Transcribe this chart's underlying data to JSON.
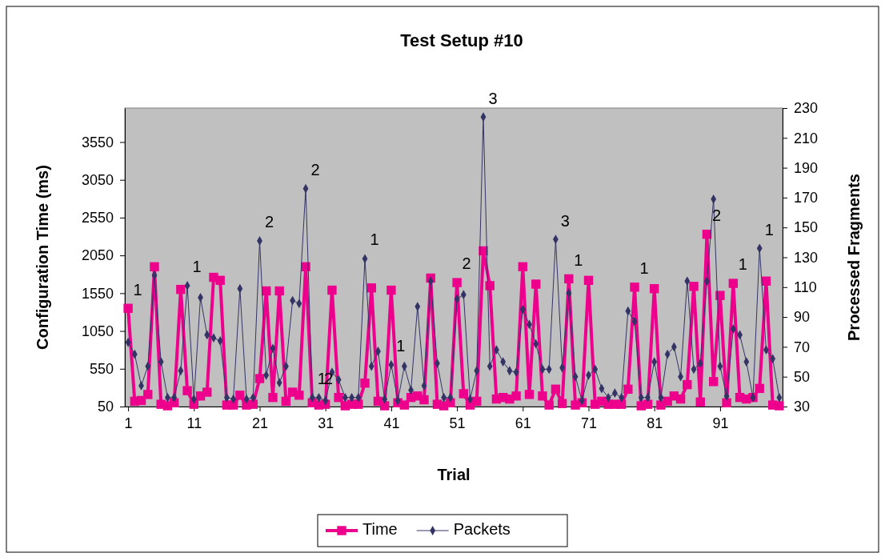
{
  "chart_data": {
    "type": "line",
    "title": "Test Setup #10",
    "xlabel": "Trial",
    "ylabel": "Configuration Time (ms)",
    "y2label": "Processed Fragments",
    "x": [
      1,
      2,
      3,
      4,
      5,
      6,
      7,
      8,
      9,
      10,
      11,
      12,
      13,
      14,
      15,
      16,
      17,
      18,
      19,
      20,
      21,
      22,
      23,
      24,
      25,
      26,
      27,
      28,
      29,
      30,
      31,
      32,
      33,
      34,
      35,
      36,
      37,
      38,
      39,
      40,
      41,
      42,
      43,
      44,
      45,
      46,
      47,
      48,
      49,
      50,
      51,
      52,
      53,
      54,
      55,
      56,
      57,
      58,
      59,
      60,
      61,
      62,
      63,
      64,
      65,
      66,
      67,
      68,
      69,
      70,
      71,
      72,
      73,
      74,
      75,
      76,
      77,
      78,
      79,
      80,
      81,
      82,
      83,
      84,
      85,
      86,
      87,
      88,
      89,
      90,
      91,
      92,
      93,
      94,
      95,
      96,
      97,
      98,
      99,
      100
    ],
    "xlim": [
      0.5,
      100.5
    ],
    "xticks": [
      1,
      11,
      21,
      31,
      41,
      51,
      61,
      71,
      81,
      91
    ],
    "ylim": [
      50,
      4000
    ],
    "yticks": [
      50,
      550,
      1050,
      1550,
      2050,
      2550,
      3050,
      3550
    ],
    "y2lim": [
      30,
      230
    ],
    "y2ticks": [
      30,
      50,
      70,
      90,
      110,
      130,
      150,
      170,
      190,
      210,
      230
    ],
    "grid": false,
    "legend": "bottom",
    "series": [
      {
        "name": "Time",
        "color": "#ec008c",
        "marker": "square",
        "values": [
          1350,
          120,
          130,
          210,
          1900,
          80,
          60,
          100,
          1600,
          260,
          80,
          190,
          240,
          1760,
          1720,
          70,
          70,
          200,
          70,
          80,
          420,
          1580,
          170,
          1580,
          120,
          240,
          200,
          1900,
          100,
          70,
          80,
          1590,
          170,
          60,
          80,
          80,
          360,
          1620,
          120,
          60,
          1590,
          100,
          70,
          170,
          190,
          140,
          1750,
          80,
          60,
          100,
          1690,
          220,
          70,
          120,
          2110,
          1650,
          150,
          170,
          150,
          190,
          1900,
          210,
          1670,
          190,
          70,
          280,
          90,
          1740,
          70,
          100,
          1720,
          80,
          120,
          80,
          80,
          80,
          280,
          1630,
          60,
          80,
          1610,
          70,
          120,
          190,
          150,
          340,
          1640,
          110,
          2330,
          380,
          1520,
          100,
          1680,
          170,
          150,
          170,
          290,
          1710,
          70,
          60
        ]
      },
      {
        "name": "Packets",
        "color": "#333366",
        "marker": "diamond",
        "axis": "y2",
        "values": [
          73,
          65,
          44,
          57,
          118,
          60,
          36,
          36,
          54,
          111,
          35,
          103,
          78,
          76,
          74,
          36,
          35,
          109,
          35,
          36,
          141,
          51,
          69,
          46,
          57,
          101,
          99,
          176,
          36,
          36,
          34,
          53,
          48,
          36,
          36,
          36,
          129,
          57,
          67,
          35,
          58,
          34,
          57,
          41,
          97,
          44,
          114,
          59,
          36,
          36,
          102,
          105,
          35,
          54,
          224,
          57,
          68,
          60,
          54,
          53,
          95,
          85,
          72,
          55,
          55,
          142,
          56,
          106,
          50,
          34,
          51,
          55,
          42,
          36,
          39,
          36,
          94,
          87,
          36,
          36,
          60,
          36,
          65,
          70,
          50,
          114,
          55,
          59,
          114,
          169,
          57,
          37,
          82,
          78,
          60,
          36,
          136,
          68,
          62,
          36
        ]
      }
    ],
    "annotations": [
      {
        "text": "1",
        "x": 1,
        "y": 1350
      },
      {
        "text": "1",
        "x": 10,
        "y": 1650
      },
      {
        "text": "2",
        "x": 21,
        "y": 2240
      },
      {
        "text": "1",
        "x": 29,
        "y": 170
      },
      {
        "text": "2",
        "x": 28,
        "y": 2930
      },
      {
        "text": "2",
        "x": 30,
        "y": 170
      },
      {
        "text": "1",
        "x": 37,
        "y": 2010
      },
      {
        "text": "1",
        "x": 41,
        "y": 600
      },
      {
        "text": "2",
        "x": 51,
        "y": 1690
      },
      {
        "text": "3",
        "x": 55,
        "y": 3880
      },
      {
        "text": "3",
        "x": 66,
        "y": 2260
      },
      {
        "text": "1",
        "x": 68,
        "y": 1740
      },
      {
        "text": "1",
        "x": 78,
        "y": 1630
      },
      {
        "text": "2",
        "x": 89,
        "y": 2330
      },
      {
        "text": "1",
        "x": 93,
        "y": 1680
      },
      {
        "text": "1",
        "x": 97,
        "y": 2140
      }
    ]
  }
}
